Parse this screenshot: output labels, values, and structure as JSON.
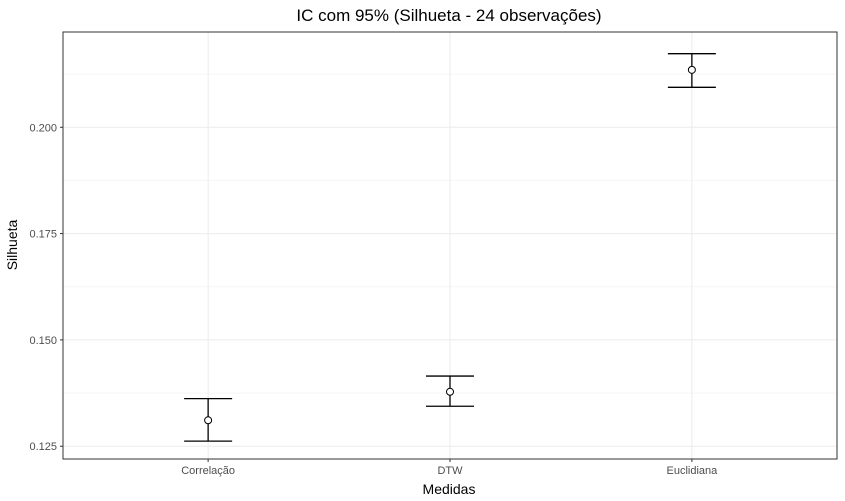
{
  "chart_data": {
    "type": "errorbar",
    "title": "IC com 95% (Silhueta - 24 observações)",
    "xlabel": "Medidas",
    "ylabel": "Silhueta",
    "categories": [
      "Correlação",
      "DTW",
      "Euclidiana"
    ],
    "points": [
      {
        "category": "Correlação",
        "mean": 0.1311,
        "lower": 0.1262,
        "upper": 0.1362
      },
      {
        "category": "DTW",
        "mean": 0.1378,
        "lower": 0.1344,
        "upper": 0.1415
      },
      {
        "category": "Euclidiana",
        "mean": 0.2135,
        "lower": 0.2094,
        "upper": 0.2173
      }
    ],
    "yticks": [
      0.125,
      0.15,
      0.175,
      0.2
    ],
    "ytick_labels": [
      "0.125",
      "0.150",
      "0.175",
      "0.200"
    ],
    "ylim": [
      0.122,
      0.2224
    ],
    "grid": true,
    "legend": "none",
    "colors": {
      "panel_border": "#333333",
      "grid_major": "#ebebeb",
      "grid_minor": "#f5f5f5",
      "errorbar": "#000000",
      "point_fill": "#ffffff"
    }
  }
}
